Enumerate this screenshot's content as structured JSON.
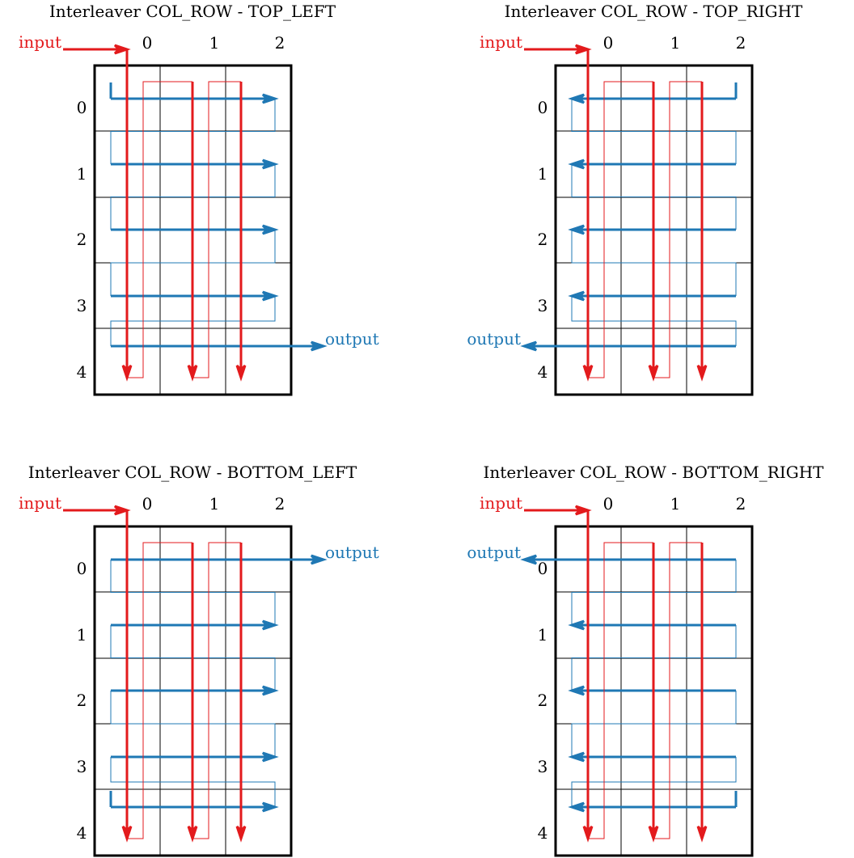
{
  "colors": {
    "input": "#e31a1c",
    "output": "#1f78b4",
    "grid": "#000000"
  },
  "panels": [
    {
      "title": "Interleaver COL_ROW - TOP_LEFT",
      "start": "TOP_LEFT",
      "input_label": "input",
      "output_label": "output",
      "col_labels": [
        "0",
        "1",
        "2"
      ],
      "row_labels": [
        "0",
        "1",
        "2",
        "3",
        "4"
      ]
    },
    {
      "title": "Interleaver COL_ROW - TOP_RIGHT",
      "start": "TOP_RIGHT",
      "input_label": "input",
      "output_label": "output",
      "col_labels": [
        "0",
        "1",
        "2"
      ],
      "row_labels": [
        "0",
        "1",
        "2",
        "3",
        "4"
      ]
    },
    {
      "title": "Interleaver COL_ROW - BOTTOM_LEFT",
      "start": "BOTTOM_LEFT",
      "input_label": "input",
      "output_label": "output",
      "col_labels": [
        "0",
        "1",
        "2"
      ],
      "row_labels": [
        "0",
        "1",
        "2",
        "3",
        "4"
      ]
    },
    {
      "title": "Interleaver COL_ROW - BOTTOM_RIGHT",
      "start": "BOTTOM_RIGHT",
      "input_label": "input",
      "output_label": "output",
      "col_labels": [
        "0",
        "1",
        "2"
      ],
      "row_labels": [
        "0",
        "1",
        "2",
        "3",
        "4"
      ]
    }
  ]
}
